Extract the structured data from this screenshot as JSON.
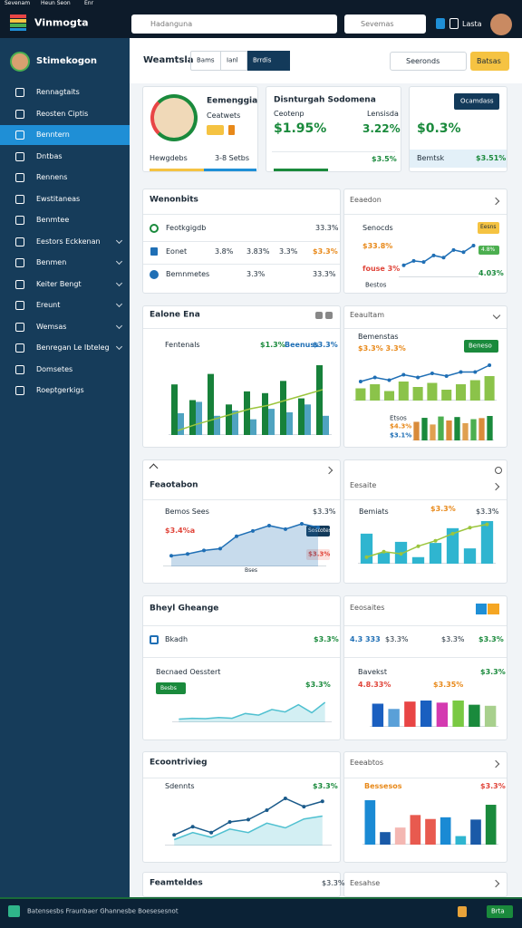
{
  "topbar": {
    "menu": [
      "Sevenam",
      "Heun Seon",
      "Enr"
    ],
    "brand": "Vinmogta",
    "search": "Hadanguna",
    "select": "Sevemas",
    "user": "Lasta"
  },
  "sidebar": {
    "profile": "Stimekogon",
    "active": 2,
    "items": [
      {
        "label": "Rennagtaits"
      },
      {
        "label": "Reosten Ciptis"
      },
      {
        "label": "Benntern"
      },
      {
        "label": "Dntbas"
      },
      {
        "label": "Rennens"
      },
      {
        "label": "Ewstitaneas"
      },
      {
        "label": "Benmtee"
      },
      {
        "label": "Eestors Eckkenan",
        "expandable": true
      },
      {
        "label": "Benmen",
        "expandable": true
      },
      {
        "label": "Keiter Bengt",
        "expandable": true
      },
      {
        "label": "Ereunt",
        "expandable": true
      },
      {
        "label": "Wemsas",
        "expandable": true
      },
      {
        "label": "Benregan Le Ibteleg",
        "expandable": true
      },
      {
        "label": "Domsetes"
      },
      {
        "label": "Roeptgerkigs"
      }
    ]
  },
  "header": {
    "title": "Weamtsla",
    "tabs": [
      "Bams",
      "Ianl",
      "Brrdis"
    ],
    "active_tab": 2,
    "search": "Seeronds",
    "button": "Batsas"
  },
  "summary": [
    {
      "name": "Eemenggia",
      "subtitle": "Ceatwets",
      "footer": [
        "Hewgdebs",
        "3-8 Setbs"
      ]
    },
    {
      "title": "Disnturgah Sodomena",
      "labels": [
        "Ceotenp",
        "Lensisda"
      ],
      "values": [
        "$1.95%",
        "3.22%"
      ],
      "footer": "$3.5%"
    },
    {
      "button": "Ocamdass",
      "value": "$0.3%",
      "footer": [
        "Bemtsk",
        "$3.51%"
      ]
    }
  ],
  "panels": [
    {
      "left": {
        "title": "Wenonbits",
        "rows": [
          [
            "Feotkgigdb",
            "33.3%"
          ],
          [
            "Eonet",
            "3.8%",
            "3.83%",
            "3.3%",
            "$3.3%"
          ],
          [
            "Bemnmetes",
            "3.3%",
            "33.3%"
          ]
        ]
      },
      "right": {
        "title": "Eeaedon",
        "legend": "Senocds",
        "badge": "Eesns",
        "labels": [
          "$33.8%",
          "4.8%",
          "fouse 3%",
          "4.03%",
          "Bestos"
        ],
        "chart": {
          "series": [
            {
              "kind": "line",
              "color": "#1f6fb5",
              "markers": true,
              "values": [
                22,
                30,
                28,
                40,
                36,
                50,
                46,
                58
              ]
            }
          ]
        }
      }
    },
    {
      "left": {
        "title": "Ealone Ena",
        "legend": "Fentenals",
        "stats": [
          "$1.3%",
          "Beenuss",
          "$3.3%"
        ],
        "chart": {
          "series": [
            {
              "kind": "bar",
              "color": "#17813a",
              "values": [
                58,
                40,
                70,
                35,
                50,
                48,
                62,
                42,
                80
              ]
            },
            {
              "kind": "bar",
              "color": "#4fa3c0",
              "values": [
                25,
                38,
                22,
                28,
                18,
                30,
                26,
                35,
                22
              ]
            },
            {
              "kind": "line",
              "color": "#9bc53d",
              "values": [
                5,
                12,
                18,
                24,
                30,
                34,
                40,
                46,
                52
              ]
            }
          ]
        }
      },
      "right": {
        "title": "Eeaultam",
        "labels": [
          "Bemenstas",
          "$3.3% 3.3%"
        ],
        "button": "Beneso",
        "sub": [
          "Etsos",
          "$4.3%",
          "$3.1%"
        ],
        "chart": {
          "series": [
            {
              "kind": "bar",
              "color": "#8bc34a",
              "values": [
                18,
                24,
                14,
                28,
                20,
                26,
                16,
                24,
                30,
                36
              ]
            },
            {
              "kind": "line",
              "color": "#1f6fb5",
              "markers": true,
              "values": [
                28,
                34,
                30,
                38,
                34,
                40,
                36,
                42,
                42,
                52
              ]
            }
          ]
        },
        "chart2": {
          "series": [
            {
              "kind": "bar",
              "colors": [
                "#d98b3a",
                "#1a8a3c",
                "#e0a050",
                "#4caf50",
                "#d98b3a",
                "#1a8a3c",
                "#e0a050",
                "#4caf50",
                "#d98b3a",
                "#1a8a3c"
              ],
              "values": [
                70,
                85,
                60,
                90,
                75,
                88,
                65,
                80,
                84,
                92
              ]
            }
          ]
        }
      }
    },
    {
      "left": {
        "title": "Feaotabon",
        "labels": [
          "Bemos Sees",
          "$3.3%",
          "$3.4%a",
          "Sostotes",
          "$3.3%",
          "Bses"
        ],
        "chart": {
          "series": [
            {
              "kind": "area",
              "color": "#1f6fb5",
              "markers": true,
              "values": [
                12,
                14,
                18,
                20,
                34,
                40,
                46,
                42,
                48,
                44
              ]
            }
          ]
        }
      },
      "right": {
        "title": "Eesaite",
        "labels": [
          "Bemiats",
          "$3.3%",
          "$3.3%"
        ],
        "chart": {
          "series": [
            {
              "kind": "bar",
              "color": "#2fb5d0",
              "values": [
                55,
                20,
                40,
                12,
                38,
                65,
                28,
                78
              ]
            },
            {
              "kind": "line",
              "color": "#9bc53d",
              "markers": true,
              "values": [
                12,
                22,
                18,
                32,
                42,
                55,
                66,
                72
              ]
            }
          ]
        }
      }
    },
    {
      "left": {
        "title": "Bheyl Gheange",
        "labels": [
          "Bkadh",
          "$3.3%",
          "Becnaed Oesstert",
          "$3.3%"
        ],
        "button": "Besbs",
        "chart": {
          "series": [
            {
              "kind": "area",
              "color": "#4fc0d0",
              "values": [
                8,
                10,
                9,
                12,
                10,
                22,
                18,
                32,
                26,
                44,
                24,
                50
              ]
            }
          ]
        }
      },
      "right": {
        "title": "Eeosaites",
        "labels": [
          "4.3 333",
          "$3.3%",
          "$3.3%",
          "$3.3%",
          "Bavekst",
          "$3.3%",
          "4.8.33%",
          "$3.35%"
        ],
        "chart": {
          "series": [
            {
              "kind": "bar",
              "colors": [
                "#1a5fc0",
                "#5aa0d8",
                "#e84545",
                "#1a5fc0",
                "#d43ab0",
                "#7ac943",
                "#1a8a3c",
                "#a8d08d"
              ],
              "values": [
                44,
                34,
                48,
                50,
                46,
                50,
                42,
                40
              ]
            }
          ]
        }
      }
    },
    {
      "left": {
        "title": "Ecoontrivieg",
        "labels": [
          "Sdennts",
          "$3.3%"
        ],
        "chart": {
          "series": [
            {
              "kind": "area",
              "color": "#4fc0d0",
              "values": [
                10,
                22,
                14,
                28,
                22,
                38,
                30,
                45,
                50
              ]
            },
            {
              "kind": "line",
              "color": "#1a5a8a",
              "markers": true,
              "values": [
                18,
                32,
                22,
                40,
                44,
                60,
                80,
                66,
                75
              ]
            }
          ]
        }
      },
      "right": {
        "title": "Eeeabtos",
        "labels": [
          "Bessesos",
          "$3.3%"
        ],
        "chart": {
          "series": [
            {
              "kind": "bar",
              "colors": [
                "#1a8ad4",
                "#1a5aa8",
                "#f4b7b2",
                "#e85a4f",
                "#e85a4f",
                "#1a8ad4",
                "#2fb5d0",
                "#1a5aa8",
                "#1a8a3c"
              ],
              "values": [
                78,
                22,
                30,
                52,
                45,
                48,
                15,
                44,
                70
              ]
            }
          ]
        }
      }
    },
    {
      "left": {
        "title": "Feamteldes",
        "labels": [
          "$3.3%"
        ]
      },
      "right": {
        "title": "Eesahse"
      }
    }
  ],
  "footer": {
    "text": "Batensesbs Fraunbaer Ghannesbe Boesesesnot",
    "button": "Brta"
  }
}
